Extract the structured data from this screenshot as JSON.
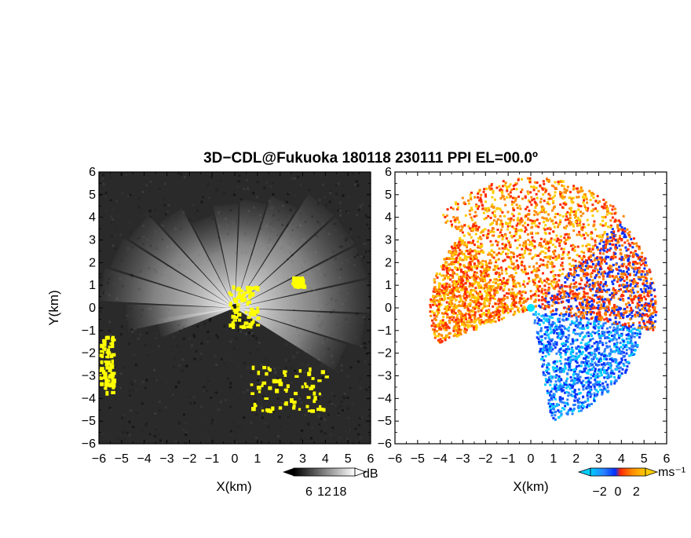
{
  "title": "3D−CDL@Fukuoka 180118 230111 PPI EL=00.0º",
  "xlabel": "X(km)",
  "ylabel": "Y(km)",
  "colors": {
    "background": "#ffffff",
    "reflectivity_bg": "#2a2a2a",
    "reflectivity_high": "#ffffff",
    "reflectivity_overlay": "#ffff00",
    "radar_center": "#1a1a1a",
    "velocity_center": "#00e5ff",
    "neg_strong": "#0030ff",
    "neg_mid": "#2a7fff",
    "neg_weak": "#00ccff",
    "pos_weak": "#ffcc00",
    "pos_mid": "#ff8800",
    "pos_strong": "#ff2a00"
  },
  "chart_data": [
    {
      "type": "heatmap",
      "panel": "left",
      "quantity": "radar reflectivity (PPI)",
      "xlabel": "X(km)",
      "ylabel": "Y(km)",
      "xlim": [
        -6,
        6
      ],
      "ylim": [
        -6,
        6
      ],
      "xticks": [
        -6,
        -5,
        -4,
        -3,
        -2,
        -1,
        0,
        1,
        2,
        3,
        4,
        5,
        6
      ],
      "yticks": [
        -6,
        -5,
        -4,
        -3,
        -2,
        -1,
        0,
        1,
        2,
        3,
        4,
        5,
        6
      ],
      "colorbar": {
        "unit": "dB",
        "ticks": [
          6,
          12,
          18
        ],
        "range": [
          0,
          24
        ],
        "colormap": "gray"
      },
      "beam_azimuths_deg": [
        -25,
        -10,
        5,
        20,
        35,
        50,
        65,
        80,
        95,
        110,
        125,
        140,
        155,
        170,
        185,
        195
      ],
      "beam_length_km": [
        5.2,
        5.8,
        6.0,
        6.0,
        6.0,
        6.0,
        5.2,
        4.8,
        4.6,
        4.2,
        5.0,
        5.6,
        5.8,
        6.0,
        4.8,
        3.5
      ],
      "overlay_regions_km": [
        {
          "x": [
            -0.3,
            1.0
          ],
          "y": [
            -0.8,
            1.0
          ]
        },
        {
          "x": [
            0.5,
            4.0
          ],
          "y": [
            -4.5,
            -2.5
          ]
        },
        {
          "x": [
            -6,
            -5.4
          ],
          "y": [
            -3.8,
            -1.2
          ]
        },
        {
          "x": [
            2.5,
            3.0
          ],
          "y": [
            1.0,
            1.4
          ]
        }
      ]
    },
    {
      "type": "heatmap",
      "panel": "right",
      "quantity": "Doppler velocity (PPI)",
      "xlabel": "X(km)",
      "xlim": [
        -6,
        6
      ],
      "ylim": [
        -6,
        6
      ],
      "xticks": [
        -6,
        -5,
        -4,
        -3,
        -2,
        -1,
        0,
        1,
        2,
        3,
        4,
        5,
        6
      ],
      "yticks": [
        -6,
        -5,
        -4,
        -3,
        -2,
        -1,
        0,
        1,
        2,
        3,
        4,
        5,
        6
      ],
      "colorbar": {
        "unit": "ms⁻¹",
        "ticks": [
          -2,
          0,
          2
        ],
        "range": [
          -3,
          3
        ],
        "colormap": "cyan-blue-red-yellow"
      },
      "sectors": [
        {
          "az_from": -80,
          "az_to": -10,
          "range_km": [
            0,
            5.0
          ],
          "sign": "negative"
        },
        {
          "az_from": -10,
          "az_to": 45,
          "range_km": [
            0,
            5.5
          ],
          "sign": "mixed-positive"
        },
        {
          "az_from": 45,
          "az_to": 135,
          "range_km": [
            0,
            5.8
          ],
          "sign": "positive"
        },
        {
          "az_from": 135,
          "az_to": 200,
          "range_km": [
            0,
            4.5
          ],
          "sign": "positive-west"
        }
      ]
    }
  ]
}
